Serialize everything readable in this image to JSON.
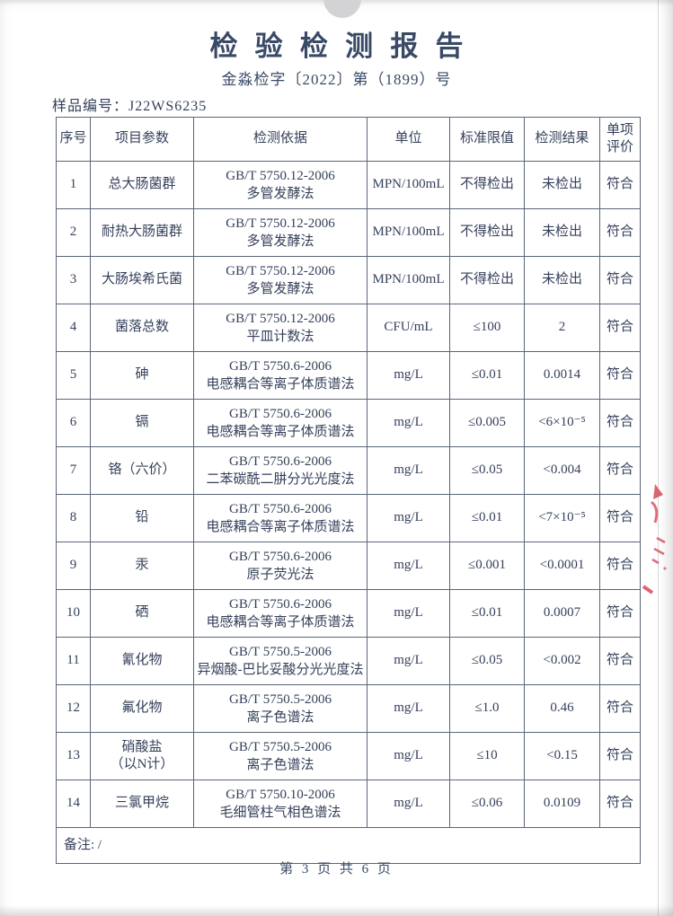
{
  "page": {
    "title": "检验检测报告",
    "report_number": "金淼检字〔2022〕第（1899）号",
    "sample_label": "样品编号：J22WS6235",
    "footer": "第 3 页 共 6 页"
  },
  "colors": {
    "ink": "#35405a",
    "table_border": "#5b6579",
    "stamp_red": "#d8485a",
    "binder_gray": "#d3d3d5"
  },
  "table": {
    "headers": [
      "序号",
      "项目参数",
      "检测依据",
      "单位",
      "标准限值",
      "检测结果",
      "单项评价"
    ],
    "rows": [
      {
        "no": "1",
        "param": "总大肠菌群",
        "param2": "",
        "basis1": "GB/T 5750.12-2006",
        "basis2": "多管发酵法",
        "unit": "MPN/100mL",
        "limit": "不得检出",
        "result": "未检出",
        "eval": "符合"
      },
      {
        "no": "2",
        "param": "耐热大肠菌群",
        "param2": "",
        "basis1": "GB/T 5750.12-2006",
        "basis2": "多管发酵法",
        "unit": "MPN/100mL",
        "limit": "不得检出",
        "result": "未检出",
        "eval": "符合"
      },
      {
        "no": "3",
        "param": "大肠埃希氏菌",
        "param2": "",
        "basis1": "GB/T 5750.12-2006",
        "basis2": "多管发酵法",
        "unit": "MPN/100mL",
        "limit": "不得检出",
        "result": "未检出",
        "eval": "符合"
      },
      {
        "no": "4",
        "param": "菌落总数",
        "param2": "",
        "basis1": "GB/T 5750.12-2006",
        "basis2": "平皿计数法",
        "unit": "CFU/mL",
        "limit": "≤100",
        "result": "2",
        "eval": "符合"
      },
      {
        "no": "5",
        "param": "砷",
        "param2": "",
        "basis1": "GB/T 5750.6-2006",
        "basis2": "电感耦合等离子体质谱法",
        "unit": "mg/L",
        "limit": "≤0.01",
        "result": "0.0014",
        "eval": "符合"
      },
      {
        "no": "6",
        "param": "镉",
        "param2": "",
        "basis1": "GB/T 5750.6-2006",
        "basis2": "电感耦合等离子体质谱法",
        "unit": "mg/L",
        "limit": "≤0.005",
        "result": "<6×10⁻⁵",
        "eval": "符合"
      },
      {
        "no": "7",
        "param": "铬（六价）",
        "param2": "",
        "basis1": "GB/T 5750.6-2006",
        "basis2": "二苯碳酰二肼分光光度法",
        "unit": "mg/L",
        "limit": "≤0.05",
        "result": "<0.004",
        "eval": "符合"
      },
      {
        "no": "8",
        "param": "铅",
        "param2": "",
        "basis1": "GB/T 5750.6-2006",
        "basis2": "电感耦合等离子体质谱法",
        "unit": "mg/L",
        "limit": "≤0.01",
        "result": "<7×10⁻⁵",
        "eval": "符合"
      },
      {
        "no": "9",
        "param": "汞",
        "param2": "",
        "basis1": "GB/T 5750.6-2006",
        "basis2": "原子荧光法",
        "unit": "mg/L",
        "limit": "≤0.001",
        "result": "<0.0001",
        "eval": "符合"
      },
      {
        "no": "10",
        "param": "硒",
        "param2": "",
        "basis1": "GB/T 5750.6-2006",
        "basis2": "电感耦合等离子体质谱法",
        "unit": "mg/L",
        "limit": "≤0.01",
        "result": "0.0007",
        "eval": "符合"
      },
      {
        "no": "11",
        "param": "氰化物",
        "param2": "",
        "basis1": "GB/T 5750.5-2006",
        "basis2": "异烟酸-巴比妥酸分光光度法",
        "unit": "mg/L",
        "limit": "≤0.05",
        "result": "<0.002",
        "eval": "符合"
      },
      {
        "no": "12",
        "param": "氟化物",
        "param2": "",
        "basis1": "GB/T 5750.5-2006",
        "basis2": "离子色谱法",
        "unit": "mg/L",
        "limit": "≤1.0",
        "result": "0.46",
        "eval": "符合"
      },
      {
        "no": "13",
        "param": "硝酸盐",
        "param2": "（以N计）",
        "basis1": "GB/T 5750.5-2006",
        "basis2": "离子色谱法",
        "unit": "mg/L",
        "limit": "≤10",
        "result": "<0.15",
        "eval": "符合"
      },
      {
        "no": "14",
        "param": "三氯甲烷",
        "param2": "",
        "basis1": "GB/T 5750.10-2006",
        "basis2": "毛细管柱气相色谱法",
        "unit": "mg/L",
        "limit": "≤0.06",
        "result": "0.0109",
        "eval": "符合"
      }
    ],
    "remarks": "备注: /"
  }
}
